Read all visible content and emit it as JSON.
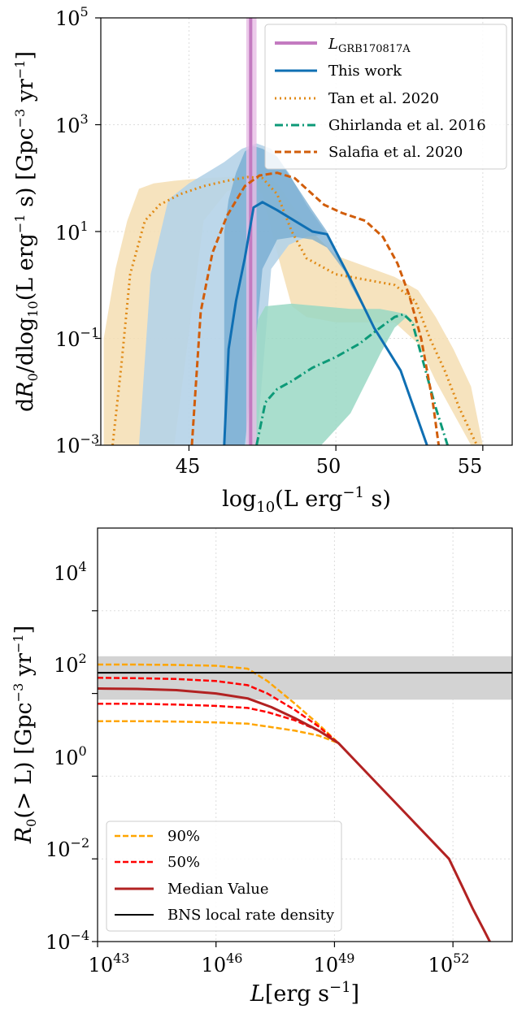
{
  "chart_data": [
    {
      "type": "line",
      "panel": "top",
      "xlabel": "log₁₀(L erg⁻¹ s)",
      "ylabel": "dR₀/dlog₁₀(L erg⁻¹ s) [Gpc⁻³ yr⁻¹]",
      "xlim": [
        42,
        56
      ],
      "ylim_log10": [
        -3,
        5
      ],
      "y_log_scale": true,
      "grid": true,
      "legend_position": "top-right",
      "x_tick_labels": [
        "45",
        "50",
        "55"
      ],
      "x_tick_values": [
        45,
        50,
        55
      ],
      "y_tick_labels": [
        "10⁻³",
        "10⁻¹",
        "10¹",
        "10³",
        "10⁵"
      ],
      "y_tick_exponents": [
        -3,
        -1,
        1,
        3,
        5
      ],
      "vline": {
        "name": "L_GRB170817A",
        "x": 47.1,
        "band": [
          46.95,
          47.3
        ],
        "color": "#c37ac0"
      },
      "series": [
        {
          "name": "This work",
          "style": "solid",
          "color": "#0f6fb3",
          "x": [
            46.2,
            46.35,
            46.6,
            46.9,
            47.2,
            47.5,
            48.0,
            48.6,
            49.2,
            49.7,
            50.5,
            51.3,
            52.2,
            53.1
          ],
          "log10_y": [
            -3.0,
            -1.2,
            -0.3,
            0.5,
            1.45,
            1.55,
            1.4,
            1.2,
            1.0,
            0.95,
            0.1,
            -0.8,
            -1.6,
            -3.0
          ],
          "band_upper_log10": [
            1.0,
            1.6,
            2.1,
            2.5,
            2.6,
            2.55,
            2.4,
            1.9,
            1.4,
            1.0,
            0.0,
            -0.8,
            -1.6,
            -3.0
          ],
          "band_lower_log10": [
            -3.0,
            -3.0,
            -3.0,
            -3.0,
            -1.5,
            0.3,
            0.85,
            0.9,
            0.85,
            0.7,
            0.1,
            -0.8,
            -1.6,
            -3.0
          ],
          "outer_band_x": [
            43.3,
            43.7,
            44.3,
            45.0,
            45.6,
            46.2,
            46.8,
            47.3,
            47.8,
            48.4,
            49.0,
            49.7
          ],
          "outer_upper_log10": [
            -3.0,
            0.2,
            1.6,
            1.9,
            2.1,
            2.3,
            2.55,
            2.65,
            2.55,
            2.1,
            1.5,
            0.95
          ],
          "outer_lower_log10": [
            -3.0,
            -3.0,
            -3.0,
            -3.0,
            -3.0,
            -3.0,
            -3.0,
            -3.0,
            0.3,
            0.75,
            0.9,
            0.95
          ]
        },
        {
          "name": "Tan et al. 2020",
          "style": "dotted",
          "color": "#e08a16",
          "x": [
            42.4,
            42.7,
            43.0,
            43.5,
            44.0,
            44.7,
            45.5,
            46.3,
            47.0,
            47.5,
            48.0,
            48.5,
            49.0,
            50.0,
            51.0,
            52.0,
            52.7,
            53.2,
            53.7,
            54.2,
            54.8
          ],
          "log10_y": [
            -3.0,
            -1.5,
            0.2,
            1.2,
            1.5,
            1.7,
            1.85,
            1.95,
            2.02,
            2.0,
            1.7,
            1.0,
            0.5,
            0.2,
            0.1,
            0.0,
            -0.3,
            -1.0,
            -1.6,
            -2.3,
            -3.0
          ],
          "band_upper_log10": [
            -1.0,
            0.3,
            1.2,
            1.8,
            1.9,
            1.95,
            2.0,
            2.02,
            2.05,
            2.05,
            1.9,
            1.5,
            1.1,
            0.55,
            0.35,
            0.15,
            -0.1,
            -0.6,
            -1.2,
            -1.9,
            -3.0
          ],
          "band_lower_log10": [
            -3.0,
            -3.0,
            -3.0,
            -3.0,
            -3.0,
            -3.0,
            1.2,
            1.75,
            1.9,
            1.7,
            0.6,
            -0.4,
            -0.6,
            -0.7,
            -0.7,
            -0.7,
            -1.1,
            -1.8,
            -2.4,
            -3.0,
            -3.0
          ],
          "band_x": [
            42.1,
            42.5,
            42.9,
            43.3,
            43.8,
            44.5,
            45.5,
            46.3,
            47.0,
            47.5,
            48.0,
            48.5,
            49.0,
            50.0,
            51.0,
            52.0,
            52.8,
            53.4,
            54.0,
            54.6,
            55.0
          ]
        },
        {
          "name": "Ghirlanda et al. 2016",
          "style": "dashdot",
          "color": "#0d9a78",
          "x": [
            47.3,
            47.6,
            48.0,
            48.5,
            49.2,
            50.0,
            50.8,
            51.5,
            52.0,
            52.3,
            52.6,
            53.0,
            53.4,
            53.8
          ],
          "log10_y": [
            -3.0,
            -2.2,
            -1.95,
            -1.8,
            -1.55,
            -1.35,
            -1.1,
            -0.8,
            -0.6,
            -0.55,
            -0.7,
            -1.5,
            -2.3,
            -3.0
          ],
          "band_x": [
            47.0,
            47.6,
            48.5,
            49.5,
            50.5,
            51.5,
            52.0,
            52.4,
            52.8,
            53.2,
            53.8,
            54.5,
            54.8
          ],
          "band_upper_log10": [
            -1.0,
            -0.4,
            -0.35,
            -0.4,
            -0.45,
            -0.45,
            -0.5,
            -0.55,
            -0.8,
            -1.4,
            -2.2,
            -2.8,
            -3.0
          ],
          "band_lower_log10": [
            -3.0,
            -3.0,
            -3.0,
            -3.0,
            -2.4,
            -1.3,
            -0.8,
            -0.6,
            -0.8,
            -1.4,
            -2.2,
            -2.8,
            -3.0
          ]
        },
        {
          "name": "Salafia et al. 2020",
          "style": "dashed",
          "color": "#d15d0a",
          "x": [
            45.1,
            45.4,
            45.8,
            46.3,
            46.9,
            47.4,
            48.0,
            48.6,
            49.1,
            49.6,
            50.2,
            51.0,
            51.6,
            52.1,
            52.5,
            52.9,
            53.3,
            53.5
          ],
          "log10_y": [
            -3.0,
            -0.5,
            0.6,
            1.3,
            1.85,
            2.05,
            2.1,
            2.0,
            1.75,
            1.5,
            1.35,
            1.2,
            0.9,
            0.4,
            -0.2,
            -1.0,
            -2.2,
            -3.0
          ]
        }
      ]
    },
    {
      "type": "line",
      "panel": "bottom",
      "xlabel": "L[erg s⁻¹]",
      "ylabel": "R₀(> L) [Gpc⁻³ yr⁻¹]",
      "x_log_scale": true,
      "y_log_scale": true,
      "xlim_log10": [
        43,
        53.5
      ],
      "ylim_log10": [
        -4,
        6
      ],
      "grid": true,
      "legend_position": "bottom-left",
      "x_tick_labels": [
        "10⁴³",
        "10⁴⁶",
        "10⁴⁹",
        "10⁵²"
      ],
      "x_tick_exponents": [
        43,
        46,
        49,
        52
      ],
      "y_tick_labels": [
        "10⁻⁴",
        "10⁻²",
        "10⁰",
        "10²",
        "10⁴"
      ],
      "y_tick_exponents": [
        -4,
        -2,
        0,
        2,
        4
      ],
      "hband": {
        "name": "BNS local rate density",
        "center_log10": 2.5,
        "lower_log10": 1.85,
        "upper_log10": 2.9,
        "color": "#000000"
      },
      "series": [
        {
          "name": "90%",
          "style": "dashed",
          "color": "#ffa500",
          "x_log10": [
            43.0,
            44.0,
            45.0,
            46.0,
            46.8,
            47.3,
            48.0,
            48.6,
            49.1
          ],
          "upper_log10": [
            2.7,
            2.7,
            2.69,
            2.67,
            2.6,
            2.3,
            1.75,
            1.25,
            0.8
          ],
          "lower_log10": [
            1.33,
            1.33,
            1.32,
            1.3,
            1.27,
            1.2,
            1.1,
            0.98,
            0.8
          ]
        },
        {
          "name": "50%",
          "style": "dashed",
          "color": "#ff0000",
          "x_log10": [
            43.0,
            44.0,
            45.0,
            46.0,
            46.8,
            47.3,
            48.0,
            48.6,
            49.1
          ],
          "upper_log10": [
            2.38,
            2.37,
            2.35,
            2.3,
            2.2,
            2.0,
            1.6,
            1.2,
            0.8
          ],
          "lower_log10": [
            1.75,
            1.75,
            1.73,
            1.7,
            1.65,
            1.55,
            1.35,
            1.1,
            0.8
          ]
        },
        {
          "name": "Median Value",
          "style": "solid",
          "color": "#b22222",
          "x_log10": [
            43.0,
            44.0,
            45.0,
            46.0,
            46.8,
            47.4,
            48.0,
            48.6,
            49.1,
            49.5,
            50.0,
            50.5,
            51.0,
            51.5,
            51.9,
            52.2,
            52.5,
            52.8,
            53.2
          ],
          "log10_y": [
            2.12,
            2.11,
            2.08,
            2.0,
            1.88,
            1.67,
            1.4,
            1.1,
            0.8,
            0.4,
            -0.1,
            -0.6,
            -1.1,
            -1.6,
            -2.0,
            -2.6,
            -3.2,
            -3.75,
            -4.5
          ]
        },
        {
          "name": "BNS local rate density",
          "style": "solid",
          "color": "#000000",
          "x_log10": [
            43.0,
            53.5
          ],
          "log10_y": [
            2.5,
            2.5
          ]
        }
      ]
    }
  ],
  "legend_top": {
    "vline_label_main": "L",
    "vline_label_sub": "GRB170817A",
    "this_work": "This work",
    "tan": "Tan et al. 2020",
    "ghirlanda": "Ghirlanda et al. 2016",
    "salafia": "Salafia et al. 2020"
  },
  "legend_bottom": {
    "p90": "90%",
    "p50": "50%",
    "median": "Median Value",
    "bns": "BNS local rate density"
  },
  "labels_top": {
    "x_main": "log",
    "x_sub": "10",
    "x_rest": "(L erg",
    "x_sup": "−1",
    "x_end": " s)",
    "y_a": "d",
    "y_b": "R",
    "y_b_sub": "0",
    "y_c": "/dlog",
    "y_c_sub": "10",
    "y_d": "(L erg",
    "y_d_sup": "−1",
    "y_e": " s) [Gpc",
    "y_e_sup": "−3",
    "y_f": " yr",
    "y_f_sup": "−1",
    "y_g": "]"
  },
  "labels_bottom": {
    "x_a": "L",
    "x_b": "[erg s",
    "x_sup": "−1",
    "x_c": "]",
    "y_a": "R",
    "y_sub": "0",
    "y_b": "(> L) [Gpc",
    "y_sup1": "−3",
    "y_c": " yr",
    "y_sup2": "−1",
    "y_d": "]"
  },
  "tick_text": {
    "base": "10",
    "top_x": [
      "45",
      "50",
      "55"
    ],
    "top_y_exp": [
      "−3",
      "−1",
      "1",
      "3",
      "5"
    ],
    "bottom_x_exp": [
      "43",
      "46",
      "49",
      "52"
    ],
    "bottom_y_exp": [
      "−4",
      "−2",
      "0",
      "2",
      "4"
    ]
  },
  "colors": {
    "tan_band": "#f5deb3",
    "this_work_outer_band": "#b5d3e8",
    "this_work_inner_band": "#6ea7cf",
    "ghirlanda_band": "#9ad8c4",
    "grb_band": "#e7bde5",
    "bns_band": "#d3d3d3"
  }
}
